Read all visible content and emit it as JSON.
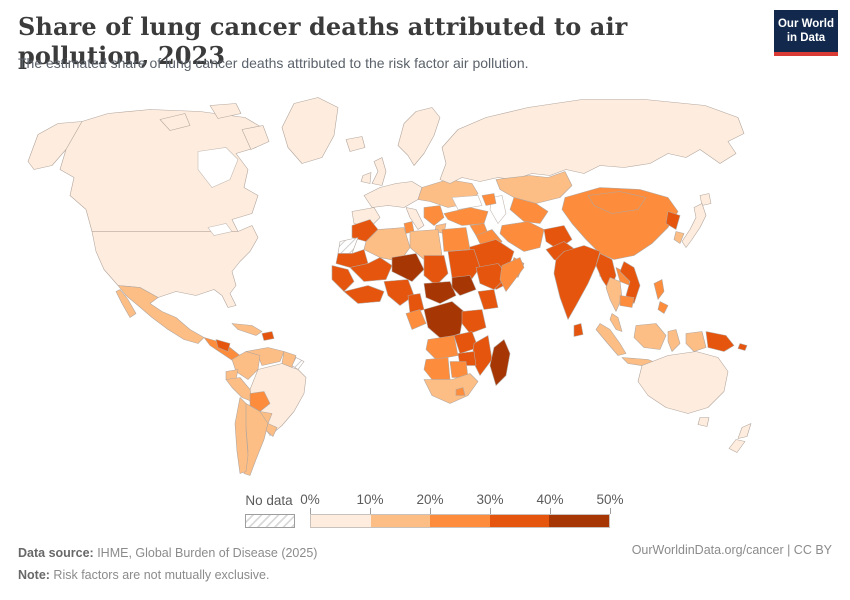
{
  "header": {
    "title": "Share of lung cancer deaths attributed to air pollution, 2023",
    "subtitle": "The estimated share of lung cancer deaths attributed to the risk factor air pollution.",
    "logo_line1": "Our World",
    "logo_line2": "in Data"
  },
  "legend": {
    "no_data_label": "No data",
    "tick_labels": [
      "0%",
      "10%",
      "20%",
      "30%",
      "40%",
      "50%"
    ]
  },
  "footer": {
    "source_label": "Data source:",
    "source_text": " IHME, Global Burden of Disease (2025)",
    "note_label": "Note:",
    "note_text": " Risk factors are not mutually exclusive.",
    "link_text": "OurWorldinData.org/cancer | CC BY"
  },
  "colors": {
    "border": "#b3a69e",
    "no_data_fill": "#ffffff",
    "logo_bg": "#12294d",
    "logo_stripe": "#d93a34"
  },
  "chart_data": {
    "type": "choropleth",
    "title": "Share of lung cancer deaths attributed to air pollution, 2023",
    "unit": "%",
    "legend_range": [
      0,
      50
    ],
    "bins": [
      {
        "label": "0-10%",
        "color": "#feedde"
      },
      {
        "label": "10-20%",
        "color": "#fdbe85"
      },
      {
        "label": "20-30%",
        "color": "#fd8d3c"
      },
      {
        "label": "30-40%",
        "color": "#e6550d"
      },
      {
        "label": "40-50%",
        "color": "#a63603"
      }
    ],
    "regions": {
      "alaska": "0-10%",
      "canada": "0-10%",
      "canada-arctic-1": "0-10%",
      "canada-arctic-2": "0-10%",
      "canada-arctic-3": "0-10%",
      "greenland": "0-10%",
      "united-states": "0-10%",
      "mexico": "10-20%",
      "baja-california": "10-20%",
      "cuba": "10-20%",
      "central-america": "20-30%",
      "honduras": "30-40%",
      "haiti": "30-40%",
      "panama-costa-rica": "10-20%",
      "colombia": "10-20%",
      "venezuela": "10-20%",
      "guyana-suriname": "10-20%",
      "french-guiana": "No data",
      "ecuador": "10-20%",
      "peru": "10-20%",
      "brazil": "0-10%",
      "bolivia": "20-30%",
      "paraguay": "10-20%",
      "chile": "10-20%",
      "argentina": "10-20%",
      "uruguay": "10-20%",
      "iceland": "0-10%",
      "united-kingdom": "0-10%",
      "ireland": "0-10%",
      "scandinavia": "0-10%",
      "western-europe": "0-10%",
      "iberia": "0-10%",
      "italy": "0-10%",
      "eastern-europe": "10-20%",
      "balkans": "20-30%",
      "greece": "10-20%",
      "russia": "0-10%",
      "kazakhstan": "10-20%",
      "central-asia": "20-30%",
      "caucasus": "20-30%",
      "turkey": "20-30%",
      "syria": "20-30%",
      "iraq": "20-30%",
      "iran": "20-30%",
      "afghanistan": "30-40%",
      "pakistan": "30-40%",
      "saudi-arabia": "30-40%",
      "yemen": "30-40%",
      "oman": "20-30%",
      "india": "30-40%",
      "sri-lanka": "30-40%",
      "bangladesh": "40-50%",
      "china": "20-30%",
      "mongolia": "20-30%",
      "north-korea": "30-40%",
      "south-korea": "10-20%",
      "japan": "0-10%",
      "japan-north": "0-10%",
      "myanmar": "30-40%",
      "thailand": "10-20%",
      "laos": "20-30%",
      "vietnam": "30-40%",
      "cambodia": "20-30%",
      "malaysia": "10-20%",
      "sumatra": "10-20%",
      "java": "10-20%",
      "borneo": "10-20%",
      "sulawesi": "10-20%",
      "philippines-north": "20-30%",
      "philippines-south": "20-30%",
      "west-papua": "10-20%",
      "papua-new-guinea": "30-40%",
      "solomon-islands": "30-40%",
      "morocco": "30-40%",
      "western-sahara": "No data",
      "algeria": "10-20%",
      "tunisia": "20-30%",
      "libya": "10-20%",
      "egypt": "20-30%",
      "mauritania": "30-40%",
      "mali": "30-40%",
      "niger": "40-50%",
      "chad": "30-40%",
      "sudan": "30-40%",
      "senegal-guinea": "30-40%",
      "ivory-coast-ghana": "30-40%",
      "nigeria": "30-40%",
      "cameroon": "30-40%",
      "central-african-republic": "40-50%",
      "south-sudan": "40-50%",
      "ethiopia": "30-40%",
      "somalia": "20-30%",
      "kenya": "30-40%",
      "dr-congo": "40-50%",
      "gabon-congo": "20-30%",
      "tanzania": "30-40%",
      "angola": "20-30%",
      "zambia": "30-40%",
      "mozambique": "30-40%",
      "zimbabwe": "30-40%",
      "namibia": "20-30%",
      "botswana": "20-30%",
      "south-africa": "10-20%",
      "lesotho": "20-30%",
      "madagascar": "40-50%",
      "australia": "0-10%",
      "tasmania": "0-10%",
      "new-zealand-north": "0-10%",
      "new-zealand-south": "0-10%"
    }
  }
}
